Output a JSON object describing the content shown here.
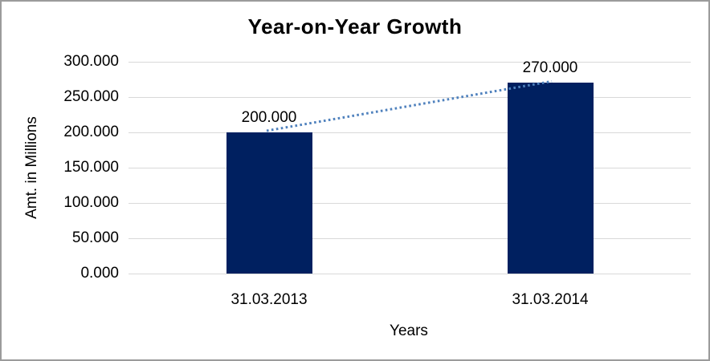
{
  "frame": {
    "background": "#ffffff",
    "border_color": "#9b9b9b"
  },
  "chart_data": {
    "type": "bar",
    "title": "Year-on-Year Growth",
    "xlabel": "Years",
    "ylabel": "Amt. in Millions",
    "categories": [
      "31.03.2013",
      "31.03.2014"
    ],
    "values": [
      200.0,
      270.0
    ],
    "data_labels": [
      "200.000",
      "270.000"
    ],
    "ylim": [
      0,
      300
    ],
    "ytick_step": 50,
    "ytick_labels": [
      "0.000",
      "50.000",
      "100.000",
      "150.000",
      "200.000",
      "250.000",
      "300.000"
    ],
    "grid": true,
    "legend_position": "none",
    "bar_color": "#002060",
    "gridline_color": "#d9d9d9",
    "text_color": "#000000",
    "trendline": {
      "type": "linear",
      "style": "dotted",
      "color": "#4f81bd",
      "connects_values": [
        200.0,
        270.0
      ]
    }
  }
}
